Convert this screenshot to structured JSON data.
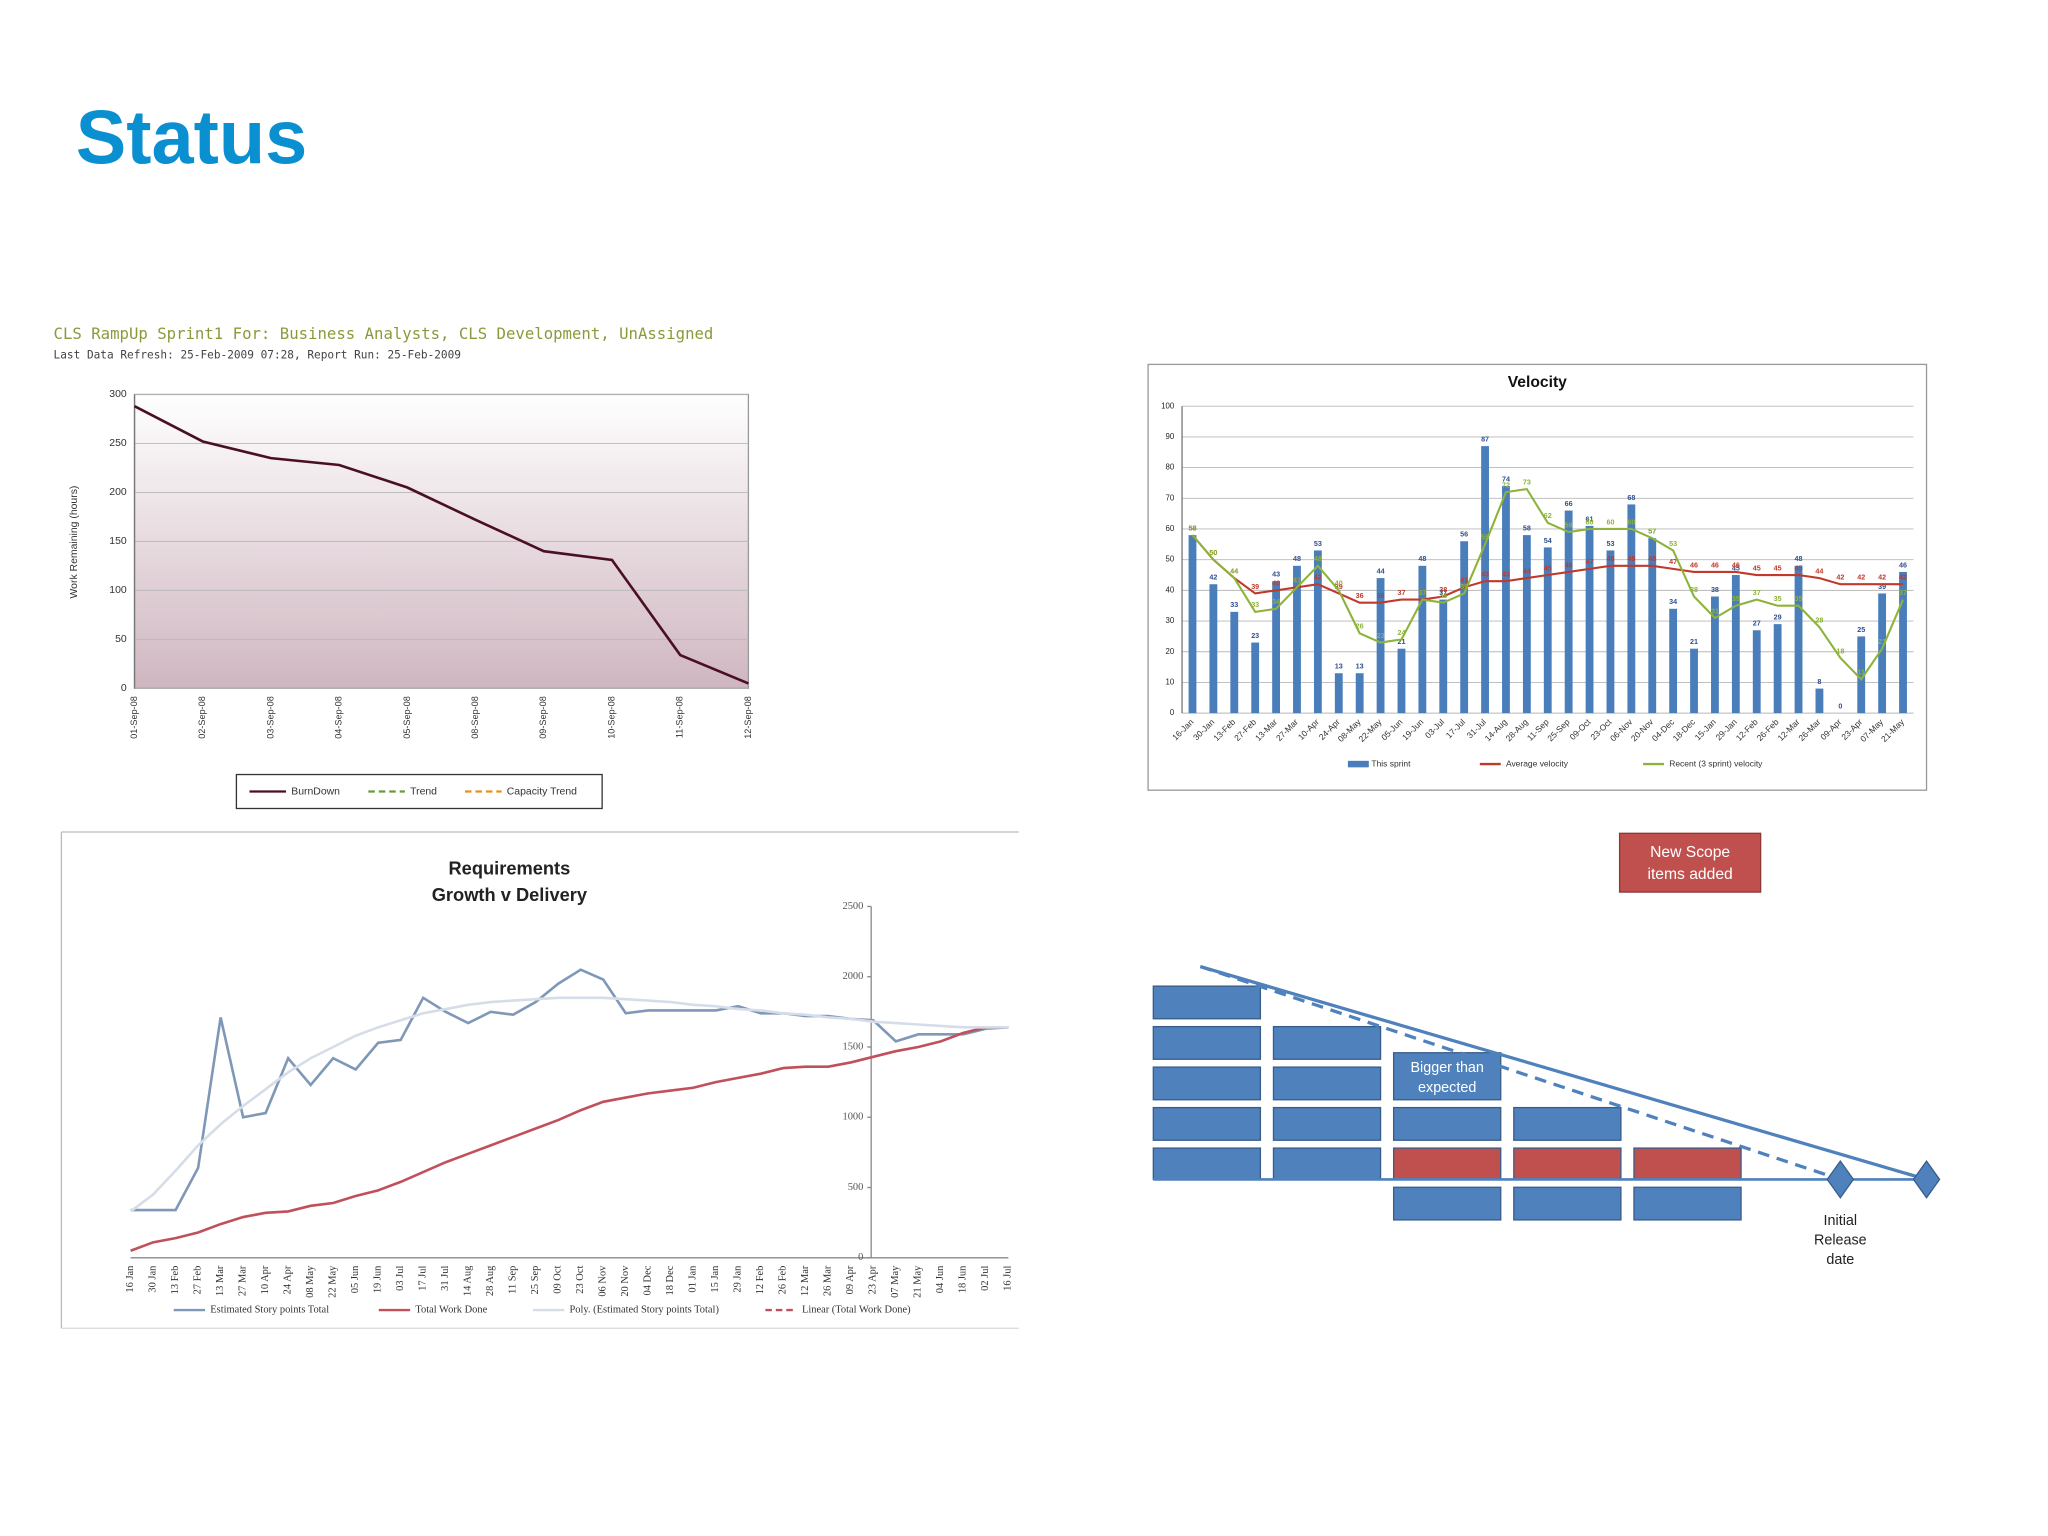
{
  "title": "Status",
  "chart_data": [
    {
      "type": "line",
      "title": "CLS RampUp Sprint1 For: Business Analysts, CLS Development, UnAssigned",
      "subtitle": "Last Data Refresh: 25-Feb-2009 07:28, Report Run: 25-Feb-2009",
      "y_label": "Work Remaining (hours)",
      "categories": [
        "01-Sep-08",
        "02-Sep-08",
        "03-Sep-08",
        "04-Sep-08",
        "05-Sep-08",
        "08-Sep-08",
        "09-Sep-08",
        "10-Sep-08",
        "11-Sep-08",
        "12-Sep-08"
      ],
      "series": [
        {
          "name": "BurnDown",
          "color": "#4a0f24",
          "style": "solid",
          "values": [
            288,
            252,
            235,
            228,
            205,
            172,
            140,
            131,
            34,
            5
          ]
        },
        {
          "name": "Trend",
          "color": "#6b9a3a",
          "style": "dashed",
          "values": [
            null,
            null,
            null,
            null,
            null,
            null,
            null,
            null,
            null,
            null
          ]
        },
        {
          "name": "Capacity Trend",
          "color": "#e8901a",
          "style": "dashed",
          "values": [
            null,
            null,
            null,
            null,
            null,
            null,
            null,
            null,
            null,
            null
          ]
        }
      ],
      "ylim": [
        0,
        300
      ],
      "yticks": [
        0,
        50,
        100,
        150,
        200,
        250,
        300
      ],
      "grid": true,
      "legend": "bottom"
    },
    {
      "type": "bar",
      "title": "Velocity",
      "categories": [
        "16-Jan",
        "30-Jan",
        "13-Feb",
        "27-Feb",
        "13-Mar",
        "27-Mar",
        "10-Apr",
        "24-Apr",
        "08-May",
        "22-May",
        "05-Jun",
        "19-Jun",
        "03-Jul",
        "17-Jul",
        "31-Jul",
        "14-Aug",
        "28-Aug",
        "11-Sep",
        "25-Sep",
        "09-Oct",
        "23-Oct",
        "06-Nov",
        "20-Nov",
        "04-Dec",
        "18-Dec",
        "15-Jan",
        "29-Jan",
        "12-Feb",
        "26-Feb",
        "12-Mar",
        "26-Mar",
        "09-Apr",
        "23-Apr",
        "07-May",
        "21-May"
      ],
      "series": [
        {
          "name": "This sprint",
          "type": "bar",
          "color": "#4a7ebb",
          "label_color": "#2f4f8f",
          "values": [
            58,
            42,
            33,
            23,
            43,
            48,
            53,
            13,
            13,
            44,
            21,
            48,
            37,
            56,
            87,
            74,
            58,
            54,
            66,
            61,
            53,
            68,
            57,
            34,
            21,
            38,
            45,
            27,
            29,
            48,
            8,
            0,
            25,
            39,
            46
          ]
        },
        {
          "name": "Average velocity",
          "type": "line",
          "color": "#c0392b",
          "label_color": "#c0392b",
          "values": [
            58,
            50,
            44,
            39,
            40,
            41,
            42,
            39,
            36,
            36,
            37,
            37,
            38,
            41,
            43,
            43,
            44,
            45,
            46,
            47,
            48,
            48,
            48,
            47,
            46,
            46,
            46,
            45,
            45,
            45,
            44,
            42,
            42,
            42,
            42
          ]
        },
        {
          "name": "Recent (3 sprint) velocity",
          "type": "line",
          "color": "#8db33a",
          "label_color": "#8db33a",
          "values": [
            58,
            50,
            44,
            33,
            34,
            41,
            48,
            40,
            26,
            23,
            24,
            37,
            36,
            39,
            55,
            72,
            73,
            62,
            59,
            60,
            60,
            60,
            57,
            53,
            38,
            31,
            35,
            37,
            35,
            35,
            28,
            18,
            11,
            21,
            37
          ]
        }
      ],
      "ylim": [
        0,
        100
      ],
      "yticks": [
        0,
        10,
        20,
        30,
        40,
        50,
        60,
        70,
        80,
        90,
        100
      ],
      "grid": true,
      "data_labels": true,
      "legend": "bottom"
    },
    {
      "type": "line",
      "title_lines": [
        "Requirements",
        "Growth v Delivery"
      ],
      "categories": [
        "16 Jan",
        "30 Jan",
        "13 Feb",
        "27 Feb",
        "13 Mar",
        "27 Mar",
        "10 Apr",
        "24 Apr",
        "08 May",
        "22 May",
        "05 Jun",
        "19 Jun",
        "03 Jul",
        "17 Jul",
        "31 Jul",
        "14 Aug",
        "28 Aug",
        "11 Sep",
        "25 Sep",
        "09 Oct",
        "23 Oct",
        "06 Nov",
        "20 Nov",
        "04 Dec",
        "18 Dec",
        "01 Jan",
        "15 Jan",
        "29 Jan",
        "12 Feb",
        "26 Feb",
        "12 Mar",
        "26 Mar",
        "09 Apr",
        "23 Apr",
        "07 May",
        "21 May",
        "04 Jun",
        "18 Jun",
        "02 Jul",
        "16 Jul"
      ],
      "series": [
        {
          "name": "Estimated Story points Total",
          "color": "#7f98b8",
          "style": "solid",
          "values": [
            340,
            340,
            340,
            640,
            1710,
            1000,
            1030,
            1420,
            1230,
            1420,
            1340,
            1530,
            1550,
            1850,
            1750,
            1670,
            1750,
            1730,
            1820,
            1950,
            2050,
            1980,
            1740,
            1760,
            1760,
            1760,
            1760,
            1790,
            1740,
            1740,
            1720,
            1720,
            1700,
            1690,
            1540,
            1590,
            1590,
            1590,
            1630,
            1640
          ]
        },
        {
          "name": "Total Work Done",
          "color": "#c0505a",
          "style": "solid",
          "values": [
            50,
            110,
            140,
            180,
            240,
            290,
            320,
            330,
            370,
            390,
            440,
            480,
            540,
            610,
            680,
            740,
            800,
            860,
            920,
            980,
            1050,
            1110,
            1140,
            1170,
            1190,
            1210,
            1250,
            1280,
            1310,
            1350,
            1360,
            1360,
            1390,
            1430,
            1470,
            1500,
            1540,
            1600,
            1640,
            1640
          ]
        },
        {
          "name": "Poly. (Estimated Story points Total)",
          "color": "#d6dde8",
          "style": "solid",
          "values": [
            330,
            450,
            620,
            800,
            950,
            1080,
            1200,
            1320,
            1420,
            1500,
            1580,
            1640,
            1690,
            1740,
            1770,
            1800,
            1820,
            1830,
            1840,
            1850,
            1850,
            1850,
            1840,
            1830,
            1820,
            1800,
            1790,
            1770,
            1760,
            1740,
            1730,
            1710,
            1700,
            1680,
            1670,
            1660,
            1650,
            1640,
            1640,
            1640
          ]
        },
        {
          "name": "Linear (Total Work Done)",
          "color": "#c0505a",
          "style": "dashed",
          "values": [
            null,
            null,
            null,
            null,
            null,
            null,
            null,
            null,
            null,
            null,
            null,
            null,
            null,
            null,
            null,
            null,
            null,
            null,
            null,
            null,
            null,
            null,
            null,
            null,
            null,
            null,
            null,
            null,
            null,
            null,
            null,
            null,
            null,
            null,
            null,
            null,
            null,
            null,
            null,
            null
          ]
        }
      ],
      "ylim": [
        0,
        2500
      ],
      "yticks": [
        0,
        500,
        1000,
        1500,
        2000,
        2500
      ],
      "y_axis_side": "right",
      "grid": false,
      "legend": "bottom"
    }
  ],
  "diagram": {
    "callout_lines": [
      "New Scope",
      "items added"
    ],
    "box_label_lines": [
      "Bigger than",
      "expected"
    ],
    "milestone_lines": [
      "Initial",
      "Release",
      "date"
    ]
  }
}
